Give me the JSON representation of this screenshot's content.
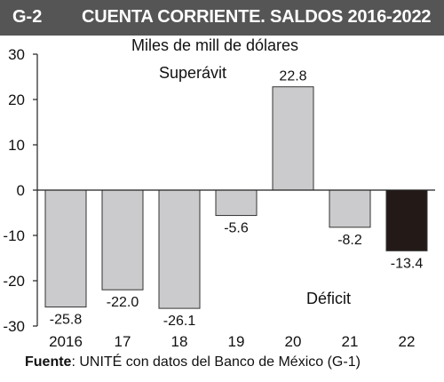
{
  "header": {
    "figure_id": "G-2",
    "title": "CUENTA CORRIENTE. SALDOS 2016-2022"
  },
  "chart_data": {
    "type": "bar",
    "title": "CUENTA CORRIENTE. SALDOS 2016-2022",
    "unit_label": "Miles de mill de dólares",
    "categories": [
      "2016",
      "17",
      "18",
      "19",
      "20",
      "21",
      "22"
    ],
    "values": [
      -25.8,
      -22.0,
      -26.1,
      -5.6,
      22.8,
      -8.2,
      -13.4
    ],
    "value_labels": [
      "-25.8",
      "-22.0",
      "-26.1",
      "-5.6",
      "22.8",
      "-8.2",
      "-13.4"
    ],
    "ylim": [
      -30,
      30
    ],
    "yticks": [
      30,
      20,
      10,
      0,
      -10,
      -20,
      -30
    ],
    "ytick_labels": [
      "30",
      "20",
      "10",
      "0",
      "-10",
      "-20",
      "-30"
    ],
    "annotations": {
      "surplus": "Superávit",
      "deficit": "Déficit"
    },
    "grid": false,
    "colors": {
      "bar": "#cbcbcd",
      "highlight": "#231a17",
      "bar_stroke": "#333333"
    },
    "highlight_index": 6
  },
  "source": {
    "label": "Fuente",
    "text": ": UNITÉ con datos del Banco de México (G-1)"
  }
}
